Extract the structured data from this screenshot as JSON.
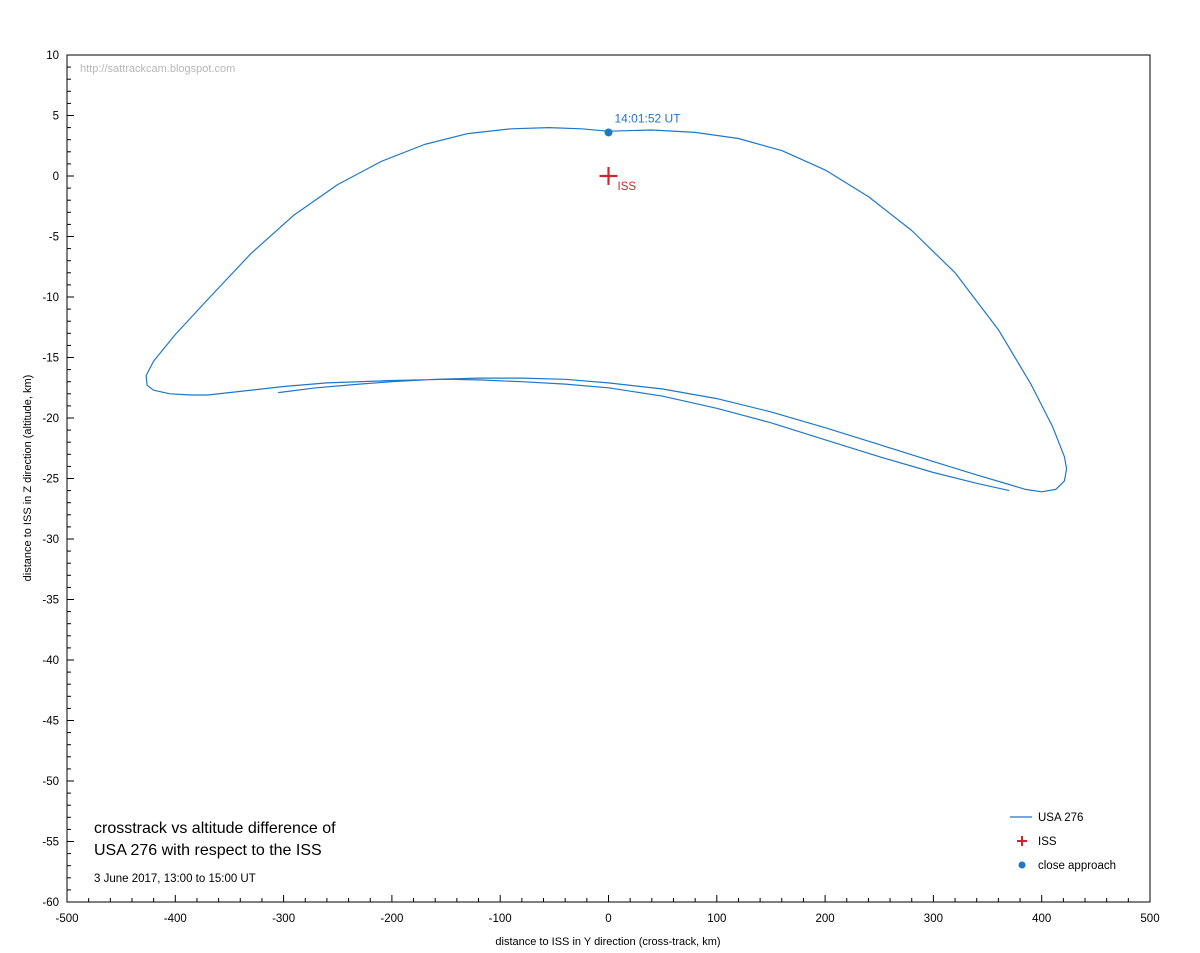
{
  "chart_data": {
    "type": "line",
    "xlabel": "distance to ISS in Y direction (cross-track, km)",
    "ylabel": "distance to ISS in Z direction (altitude, km)",
    "xlim": [
      -500,
      500
    ],
    "ylim": [
      -60,
      10
    ],
    "x_ticks": [
      -500,
      -400,
      -300,
      -200,
      -100,
      0,
      100,
      200,
      300,
      400,
      500
    ],
    "y_ticks": [
      10,
      5,
      0,
      -5,
      -10,
      -15,
      -20,
      -25,
      -30,
      -35,
      -40,
      -45,
      -50,
      -55,
      -60
    ],
    "grid": false,
    "watermark": "http://sattrackcam.blogspot.com",
    "colors": {
      "track": "#1f77c8",
      "iss": "#c8282d",
      "text": "#000000"
    },
    "series": [
      {
        "name": "USA 276",
        "x": [
          -305,
          -270,
          -230,
          -200,
          -160,
          -120,
          -80,
          -40,
          0,
          50,
          100,
          150,
          200,
          250,
          300,
          340,
          370,
          385,
          400,
          413,
          421,
          423,
          421,
          410,
          390,
          360,
          320,
          280,
          240,
          200,
          160,
          120,
          80,
          40,
          0,
          -25,
          -55,
          -90,
          -130,
          -170,
          -210,
          -250,
          -290,
          -330,
          -370,
          -400,
          -420,
          -427,
          -426,
          -420,
          -405,
          -385,
          -370,
          -340,
          -300,
          -260,
          -200,
          -150,
          -120,
          -80,
          -40,
          0,
          50,
          100,
          150,
          200,
          250,
          300,
          340,
          370
        ],
        "y": [
          -17.9,
          -17.5,
          -17.2,
          -17.0,
          -16.8,
          -16.7,
          -16.7,
          -16.8,
          -17.1,
          -17.6,
          -18.4,
          -19.5,
          -20.8,
          -22.2,
          -23.6,
          -24.7,
          -25.5,
          -25.9,
          -26.1,
          -25.9,
          -25.2,
          -24.2,
          -23.2,
          -20.7,
          -17.2,
          -12.7,
          -8.0,
          -4.5,
          -1.7,
          0.5,
          2.1,
          3.1,
          3.6,
          3.8,
          3.7,
          3.9,
          4.0,
          3.9,
          3.5,
          2.6,
          1.2,
          -0.7,
          -3.2,
          -6.4,
          -10.2,
          -13.1,
          -15.3,
          -16.5,
          -17.3,
          -17.7,
          -18.0,
          -18.1,
          -18.1,
          -17.8,
          -17.4,
          -17.1,
          -16.9,
          -16.8,
          -16.85,
          -17.0,
          -17.2,
          -17.5,
          -18.2,
          -19.2,
          -20.4,
          -21.8,
          -23.2,
          -24.5,
          -25.4,
          -26.0
        ]
      }
    ],
    "iss_point": {
      "name": "ISS",
      "x": 0,
      "y": 0,
      "label": "ISS"
    },
    "close_approach": {
      "name": "close approach",
      "x": 0,
      "y": 3.6,
      "label": "14:01:52 UT"
    },
    "legend": {
      "placement": "bottom-right",
      "entries": [
        "USA 276",
        "ISS",
        "close approach"
      ]
    },
    "annotation": {
      "title_line1": "crosstrack vs altitude difference of",
      "title_line2": "USA 276 with respect to the ISS",
      "subtitle": "3 June 2017, 13:00 to 15:00 UT"
    }
  }
}
